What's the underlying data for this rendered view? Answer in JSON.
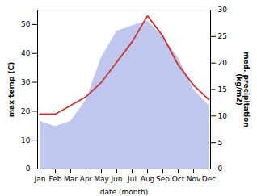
{
  "chart_data": {
    "type": "line",
    "xlabel": "date (month)",
    "ylabel": "max temp (C)",
    "y2label": "med. precipitation\n(kg/m2)",
    "categories": [
      "Jan",
      "Feb",
      "Mar",
      "Apr",
      "May",
      "Jun",
      "Jul",
      "Aug",
      "Sep",
      "Oct",
      "Nov",
      "Dec"
    ],
    "series": [
      {
        "name": "med. precipitation\n(kg/m2)",
        "type": "area",
        "axis": "y2",
        "color": "#aab4e8",
        "values": [
          9,
          8,
          9,
          13,
          21,
          26,
          27,
          28,
          25,
          21,
          15,
          12
        ]
      },
      {
        "name": "max temp (C)",
        "type": "line",
        "axis": "y",
        "color": "#cc3333",
        "values": [
          19,
          19,
          22,
          25,
          30,
          37,
          44,
          53,
          46,
          36,
          29,
          24
        ]
      }
    ],
    "ylim": [
      0,
      55
    ],
    "yticks": [
      0,
      10,
      20,
      30,
      40,
      50
    ],
    "y2lim": [
      0,
      30
    ],
    "y2ticks": [
      0,
      5,
      10,
      15,
      20,
      25,
      30
    ],
    "grid": false
  }
}
